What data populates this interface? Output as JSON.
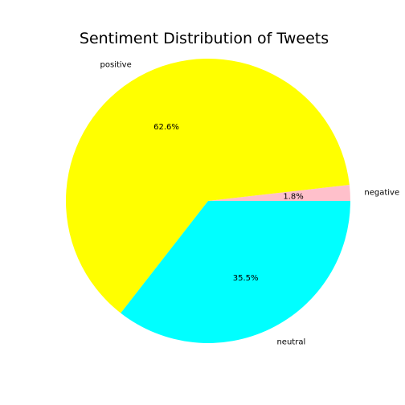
{
  "chart_data": {
    "type": "pie",
    "title": "Sentiment Distribution of Tweets",
    "slices": [
      {
        "label": "negative",
        "value": 1.8,
        "pct_label": "1.8%",
        "color": "#ffc0cb"
      },
      {
        "label": "positive",
        "value": 62.6,
        "pct_label": "62.6%",
        "color": "#ffff00"
      },
      {
        "label": "neutral",
        "value": 35.5,
        "pct_label": "35.5%",
        "color": "#00ffff"
      }
    ],
    "start_angle_deg": 0,
    "direction": "counterclockwise",
    "legend": "none"
  }
}
